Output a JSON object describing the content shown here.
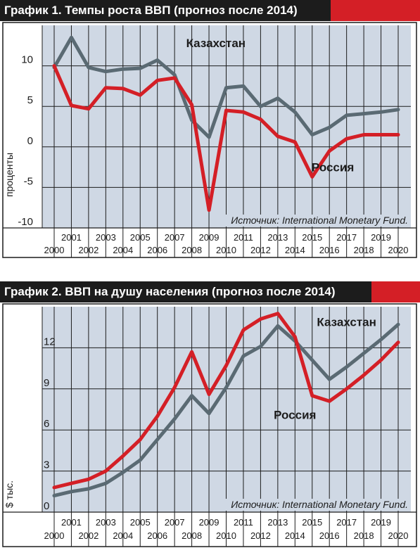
{
  "chart_data": [
    {
      "type": "line",
      "title": "График 1. Темпы роста ВВП (прогноз после 2014)",
      "ylabel": "проценты",
      "ylim": [
        -10,
        15
      ],
      "yticks": [
        -10,
        -5,
        0,
        5,
        10
      ],
      "xlim": [
        2000,
        2020
      ],
      "x": [
        2000,
        2001,
        2002,
        2003,
        2004,
        2005,
        2006,
        2007,
        2008,
        2009,
        2010,
        2011,
        2012,
        2013,
        2014,
        2015,
        2016,
        2017,
        2018,
        2019,
        2020
      ],
      "xticks_top": [
        "2001",
        "2003",
        "2005",
        "2007",
        "2009",
        "2011",
        "2013",
        "2015",
        "2017",
        "2019"
      ],
      "xticks_bottom": [
        "2000",
        "2002",
        "2004",
        "2006",
        "2008",
        "2010",
        "2012",
        "2014",
        "2016",
        "2018",
        "2020"
      ],
      "grid": true,
      "source": "Источник: International Monetary Fund.",
      "series": [
        {
          "name": "Казахстан",
          "color": "#5a6a73",
          "values": [
            9.8,
            13.5,
            9.8,
            9.3,
            9.6,
            9.7,
            10.7,
            8.9,
            3.3,
            1.2,
            7.3,
            7.5,
            5.0,
            6.0,
            4.3,
            1.5,
            2.4,
            3.9,
            4.1,
            4.3,
            4.6
          ]
        },
        {
          "name": "Россия",
          "color": "#d41f26",
          "values": [
            10.0,
            5.1,
            4.7,
            7.3,
            7.2,
            6.4,
            8.2,
            8.5,
            5.2,
            -7.8,
            4.5,
            4.3,
            3.4,
            1.3,
            0.6,
            -3.7,
            -0.5,
            1.0,
            1.5,
            1.5,
            1.5
          ]
        }
      ],
      "series_labels": [
        {
          "text": "Казахстан",
          "x": 2009.4,
          "y": 12.3
        },
        {
          "text": "Россия",
          "x": 2016.2,
          "y": -3.0
        }
      ]
    },
    {
      "type": "line",
      "title": "График 2. ВВП на душу населения (прогноз после 2014)",
      "ylabel": "$ тыс.",
      "ylim": [
        0,
        15
      ],
      "yticks": [
        0,
        3,
        6,
        9,
        12
      ],
      "xlim": [
        2000,
        2020
      ],
      "x": [
        2000,
        2001,
        2002,
        2003,
        2004,
        2005,
        2006,
        2007,
        2008,
        2009,
        2010,
        2011,
        2012,
        2013,
        2014,
        2015,
        2016,
        2017,
        2018,
        2019,
        2020
      ],
      "xticks_top": [
        "2001",
        "2003",
        "2005",
        "2007",
        "2009",
        "2011",
        "2013",
        "2015",
        "2017",
        "2019"
      ],
      "xticks_bottom": [
        "2000",
        "2002",
        "2004",
        "2006",
        "2008",
        "2010",
        "2012",
        "2014",
        "2016",
        "2018",
        "2020"
      ],
      "grid": true,
      "source": "Источник: International Monetary Fund.",
      "series": [
        {
          "name": "Казахстан",
          "color": "#5a6a73",
          "values": [
            1.2,
            1.5,
            1.7,
            2.1,
            2.9,
            3.8,
            5.3,
            6.8,
            8.5,
            7.2,
            9.1,
            11.4,
            12.1,
            13.6,
            12.5,
            11.1,
            9.7,
            10.6,
            11.6,
            12.6,
            13.7
          ]
        },
        {
          "name": "Россия",
          "color": "#d41f26",
          "values": [
            1.8,
            2.1,
            2.4,
            3.0,
            4.1,
            5.3,
            7.0,
            9.1,
            11.7,
            8.6,
            10.7,
            13.3,
            14.1,
            14.5,
            12.8,
            8.5,
            8.1,
            9.0,
            10.0,
            11.1,
            12.4
          ]
        }
      ],
      "series_labels": [
        {
          "text": "Казахстан",
          "x": 2017.0,
          "y": 13.6
        },
        {
          "text": "Россия",
          "x": 2014.0,
          "y": 6.8
        }
      ]
    }
  ]
}
